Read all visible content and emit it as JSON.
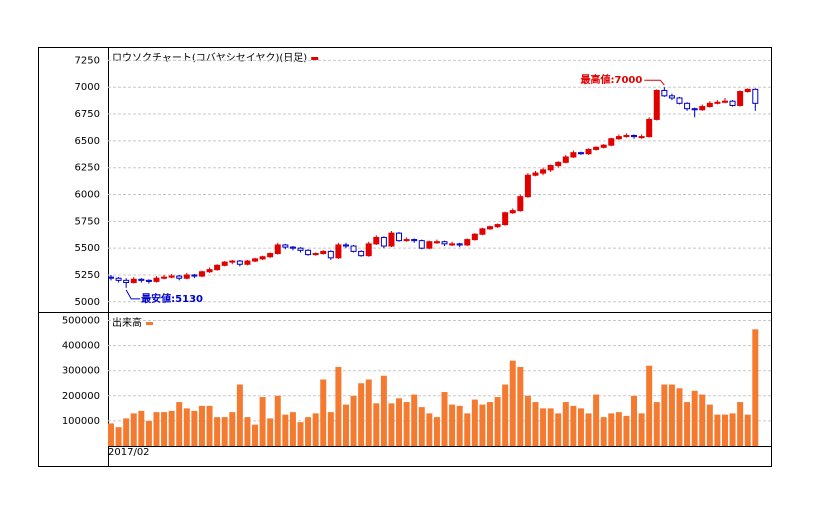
{
  "chart_data": [
    {
      "type": "candlestick",
      "title": "ロウソクチャート(コバヤシセイヤク)(日足)",
      "annotations": [
        "最高値:7000",
        "最安値:5130"
      ],
      "up_color": "#e00000",
      "down_color": "#0000cc",
      "ylim": [
        4905,
        7375
      ],
      "yticks": [
        5000,
        5250,
        5500,
        5750,
        6000,
        6250,
        6500,
        6750,
        7000,
        7250
      ],
      "grid": true,
      "ohlc": [
        [
          5230,
          5250,
          5200,
          5220
        ],
        [
          5220,
          5230,
          5180,
          5200
        ],
        [
          5200,
          5220,
          5130,
          5180
        ],
        [
          5180,
          5230,
          5170,
          5210
        ],
        [
          5210,
          5220,
          5180,
          5200
        ],
        [
          5200,
          5210,
          5170,
          5190
        ],
        [
          5190,
          5240,
          5180,
          5220
        ],
        [
          5220,
          5250,
          5210,
          5230
        ],
        [
          5230,
          5260,
          5220,
          5240
        ],
        [
          5240,
          5250,
          5200,
          5220
        ],
        [
          5220,
          5270,
          5210,
          5250
        ],
        [
          5250,
          5260,
          5220,
          5240
        ],
        [
          5240,
          5290,
          5230,
          5280
        ],
        [
          5280,
          5320,
          5270,
          5300
        ],
        [
          5300,
          5350,
          5290,
          5340
        ],
        [
          5340,
          5380,
          5330,
          5370
        ],
        [
          5370,
          5390,
          5350,
          5380
        ],
        [
          5380,
          5390,
          5330,
          5350
        ],
        [
          5350,
          5390,
          5340,
          5380
        ],
        [
          5380,
          5410,
          5370,
          5400
        ],
        [
          5400,
          5430,
          5390,
          5420
        ],
        [
          5420,
          5460,
          5410,
          5450
        ],
        [
          5450,
          5550,
          5440,
          5530
        ],
        [
          5530,
          5540,
          5490,
          5510
        ],
        [
          5510,
          5520,
          5480,
          5500
        ],
        [
          5500,
          5510,
          5460,
          5480
        ],
        [
          5480,
          5490,
          5430,
          5440
        ],
        [
          5440,
          5460,
          5430,
          5450
        ],
        [
          5450,
          5480,
          5440,
          5470
        ],
        [
          5470,
          5480,
          5390,
          5410
        ],
        [
          5410,
          5550,
          5400,
          5530
        ],
        [
          5530,
          5550,
          5500,
          5520
        ],
        [
          5520,
          5530,
          5460,
          5470
        ],
        [
          5470,
          5480,
          5420,
          5430
        ],
        [
          5430,
          5560,
          5420,
          5540
        ],
        [
          5540,
          5620,
          5530,
          5600
        ],
        [
          5600,
          5610,
          5500,
          5520
        ],
        [
          5520,
          5660,
          5510,
          5640
        ],
        [
          5640,
          5650,
          5560,
          5570
        ],
        [
          5570,
          5600,
          5560,
          5580
        ],
        [
          5580,
          5590,
          5550,
          5570
        ],
        [
          5570,
          5580,
          5490,
          5500
        ],
        [
          5500,
          5570,
          5490,
          5560
        ],
        [
          5550,
          5580,
          5540,
          5560
        ],
        [
          5560,
          5570,
          5520,
          5540
        ],
        [
          5530,
          5560,
          5520,
          5540
        ],
        [
          5540,
          5550,
          5510,
          5530
        ],
        [
          5530,
          5590,
          5520,
          5580
        ],
        [
          5580,
          5640,
          5570,
          5630
        ],
        [
          5630,
          5690,
          5620,
          5680
        ],
        [
          5680,
          5710,
          5670,
          5700
        ],
        [
          5700,
          5730,
          5690,
          5720
        ],
        [
          5720,
          5840,
          5710,
          5830
        ],
        [
          5830,
          5870,
          5820,
          5850
        ],
        [
          5850,
          6000,
          5840,
          5980
        ],
        [
          5980,
          6200,
          5970,
          6180
        ],
        [
          6180,
          6220,
          6170,
          6200
        ],
        [
          6200,
          6250,
          6180,
          6230
        ],
        [
          6230,
          6280,
          6210,
          6270
        ],
        [
          6270,
          6310,
          6250,
          6300
        ],
        [
          6300,
          6370,
          6290,
          6350
        ],
        [
          6350,
          6410,
          6340,
          6390
        ],
        [
          6390,
          6400,
          6370,
          6380
        ],
        [
          6380,
          6430,
          6370,
          6420
        ],
        [
          6420,
          6450,
          6410,
          6440
        ],
        [
          6440,
          6470,
          6430,
          6460
        ],
        [
          6460,
          6530,
          6450,
          6520
        ],
        [
          6520,
          6560,
          6510,
          6540
        ],
        [
          6540,
          6570,
          6530,
          6550
        ],
        [
          6550,
          6560,
          6520,
          6540
        ],
        [
          6530,
          6560,
          6520,
          6540
        ],
        [
          6540,
          6720,
          6530,
          6700
        ],
        [
          6700,
          6980,
          6690,
          6970
        ],
        [
          6970,
          7000,
          6910,
          6920
        ],
        [
          6920,
          6940,
          6880,
          6900
        ],
        [
          6900,
          6910,
          6840,
          6850
        ],
        [
          6850,
          6860,
          6780,
          6800
        ],
        [
          6800,
          6810,
          6720,
          6790
        ],
        [
          6790,
          6840,
          6780,
          6820
        ],
        [
          6820,
          6870,
          6810,
          6850
        ],
        [
          6850,
          6880,
          6840,
          6860
        ],
        [
          6860,
          6900,
          6850,
          6870
        ],
        [
          6870,
          6880,
          6820,
          6830
        ],
        [
          6830,
          6970,
          6820,
          6960
        ],
        [
          6960,
          6990,
          6950,
          6980
        ],
        [
          6980,
          6990,
          6780,
          6850
        ]
      ]
    },
    {
      "type": "bar",
      "title": "出来高",
      "color": "#f47a30",
      "ylim": [
        0,
        530000
      ],
      "yticks": [
        100000,
        200000,
        300000,
        400000,
        500000
      ],
      "grid": true,
      "categories": [
        "2017/02",
        null,
        null,
        null,
        null,
        null,
        null,
        null,
        null,
        null,
        null,
        null,
        null,
        null,
        null,
        null,
        null,
        null,
        null,
        null,
        null,
        null,
        null,
        null,
        null,
        null,
        null,
        null,
        null,
        null,
        null,
        null,
        null,
        null,
        null,
        null,
        null,
        null,
        null,
        null,
        null,
        null,
        null,
        null,
        null,
        null,
        null,
        null,
        null,
        null,
        null,
        null,
        null,
        null,
        null,
        null,
        null,
        null,
        null,
        null,
        null,
        null,
        null,
        null,
        null,
        null,
        null,
        null,
        null,
        null,
        null,
        null,
        null,
        null,
        null,
        null,
        null,
        null,
        null,
        null,
        null,
        null,
        null,
        null,
        null,
        null
      ],
      "values": [
        90000,
        75000,
        110000,
        130000,
        140000,
        100000,
        135000,
        135000,
        140000,
        175000,
        150000,
        140000,
        160000,
        160000,
        115000,
        115000,
        135000,
        245000,
        115000,
        85000,
        195000,
        110000,
        200000,
        125000,
        135000,
        95000,
        115000,
        130000,
        265000,
        135000,
        315000,
        165000,
        200000,
        250000,
        265000,
        170000,
        280000,
        170000,
        190000,
        175000,
        205000,
        155000,
        130000,
        115000,
        215000,
        165000,
        160000,
        130000,
        185000,
        165000,
        175000,
        195000,
        245000,
        340000,
        315000,
        200000,
        175000,
        150000,
        150000,
        130000,
        175000,
        160000,
        150000,
        130000,
        205000,
        115000,
        130000,
        135000,
        120000,
        200000,
        130000,
        320000,
        175000,
        245000,
        245000,
        230000,
        175000,
        220000,
        205000,
        165000,
        125000,
        125000,
        130000,
        175000,
        125000,
        465000
      ]
    }
  ]
}
